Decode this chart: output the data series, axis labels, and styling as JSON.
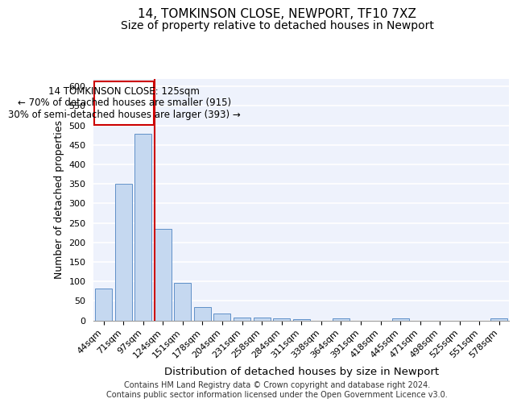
{
  "title1": "14, TOMKINSON CLOSE, NEWPORT, TF10 7XZ",
  "title2": "Size of property relative to detached houses in Newport",
  "xlabel": "Distribution of detached houses by size in Newport",
  "ylabel": "Number of detached properties",
  "categories": [
    "44sqm",
    "71sqm",
    "97sqm",
    "124sqm",
    "151sqm",
    "178sqm",
    "204sqm",
    "231sqm",
    "258sqm",
    "284sqm",
    "311sqm",
    "338sqm",
    "364sqm",
    "391sqm",
    "418sqm",
    "445sqm",
    "471sqm",
    "498sqm",
    "525sqm",
    "551sqm",
    "578sqm"
  ],
  "values": [
    82,
    350,
    478,
    235,
    97,
    35,
    18,
    8,
    8,
    5,
    4,
    0,
    5,
    0,
    0,
    5,
    0,
    0,
    0,
    0,
    5
  ],
  "bar_color": "#c5d8f0",
  "bar_edge_color": "#6090c8",
  "annotation_text_line1": "14 TOMKINSON CLOSE: 125sqm",
  "annotation_text_line2": "← 70% of detached houses are smaller (915)",
  "annotation_text_line3": "30% of semi-detached houses are larger (393) →",
  "annotation_box_facecolor": "white",
  "annotation_box_edgecolor": "#cc0000",
  "vline_color": "#cc0000",
  "vline_x": 2.575,
  "footer_line1": "Contains HM Land Registry data © Crown copyright and database right 2024.",
  "footer_line2": "Contains public sector information licensed under the Open Government Licence v3.0.",
  "ylim": [
    0,
    620
  ],
  "yticks": [
    0,
    50,
    100,
    150,
    200,
    250,
    300,
    350,
    400,
    450,
    500,
    550,
    600
  ],
  "background_color": "#eef2fc",
  "grid_color": "white",
  "title1_fontsize": 11,
  "title2_fontsize": 10,
  "tick_fontsize": 8,
  "ylabel_fontsize": 9,
  "xlabel_fontsize": 9.5,
  "annotation_fontsize": 8.5,
  "footer_fontsize": 7
}
